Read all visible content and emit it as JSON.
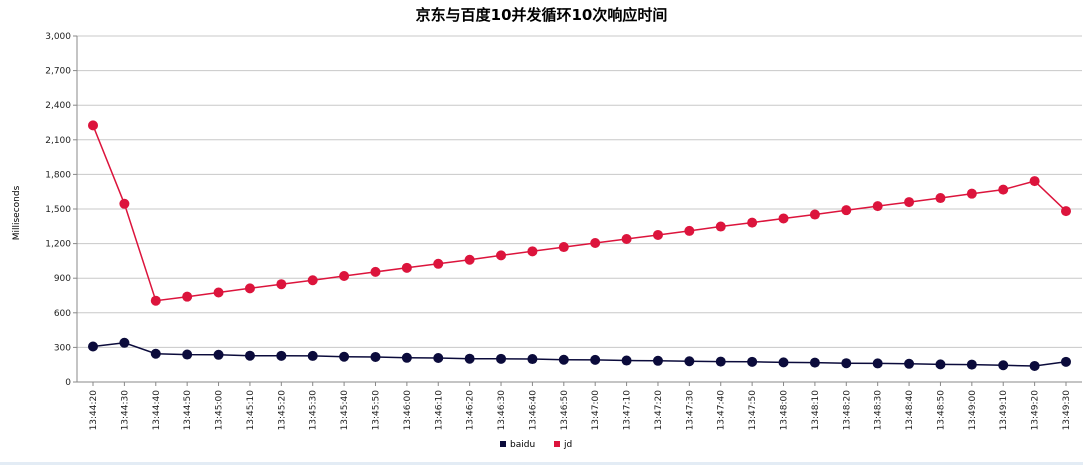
{
  "chart_data": {
    "type": "line",
    "title": "京东与百度10并发循环10次响应时间",
    "xlabel": "",
    "ylabel": "Milliseconds",
    "ylim": [
      0,
      3000
    ],
    "yticks": [
      0,
      300,
      600,
      900,
      1200,
      1500,
      1800,
      2100,
      2400,
      2700,
      3000
    ],
    "ytick_labels": [
      "0",
      "300",
      "600",
      "900",
      "1,200",
      "1,500",
      "1,800",
      "2,100",
      "2,400",
      "2,700",
      "3,000"
    ],
    "grid": "horizontal",
    "legend_position": "bottom-center",
    "categories": [
      "13:44:20",
      "13:44:30",
      "13:44:40",
      "13:44:50",
      "13:45:00",
      "13:45:10",
      "13:45:20",
      "13:45:30",
      "13:45:40",
      "13:45:50",
      "13:46:00",
      "13:46:10",
      "13:46:20",
      "13:46:30",
      "13:46:40",
      "13:46:50",
      "13:47:00",
      "13:47:10",
      "13:47:20",
      "13:47:30",
      "13:47:40",
      "13:47:50",
      "13:48:00",
      "13:48:10",
      "13:48:20",
      "13:48:30",
      "13:48:40",
      "13:48:50",
      "13:49:00",
      "13:49:10",
      "13:49:20",
      "13:49:30"
    ],
    "series": [
      {
        "name": "baidu",
        "color": "#0b0b3b",
        "values": [
          308,
          340,
          245,
          238,
          236,
          228,
          227,
          226,
          219,
          217,
          210,
          208,
          202,
          201,
          199,
          193,
          192,
          186,
          184,
          180,
          177,
          175,
          170,
          168,
          163,
          161,
          158,
          153,
          151,
          145,
          139,
          175
        ]
      },
      {
        "name": "jd",
        "color": "#dc143c",
        "values": [
          2225,
          1545,
          705,
          740,
          776,
          812,
          848,
          882,
          919,
          955,
          990,
          1025,
          1060,
          1098,
          1133,
          1170,
          1205,
          1240,
          1275,
          1310,
          1348,
          1382,
          1418,
          1452,
          1490,
          1525,
          1560,
          1595,
          1633,
          1668,
          1742,
          1482
        ]
      }
    ]
  }
}
